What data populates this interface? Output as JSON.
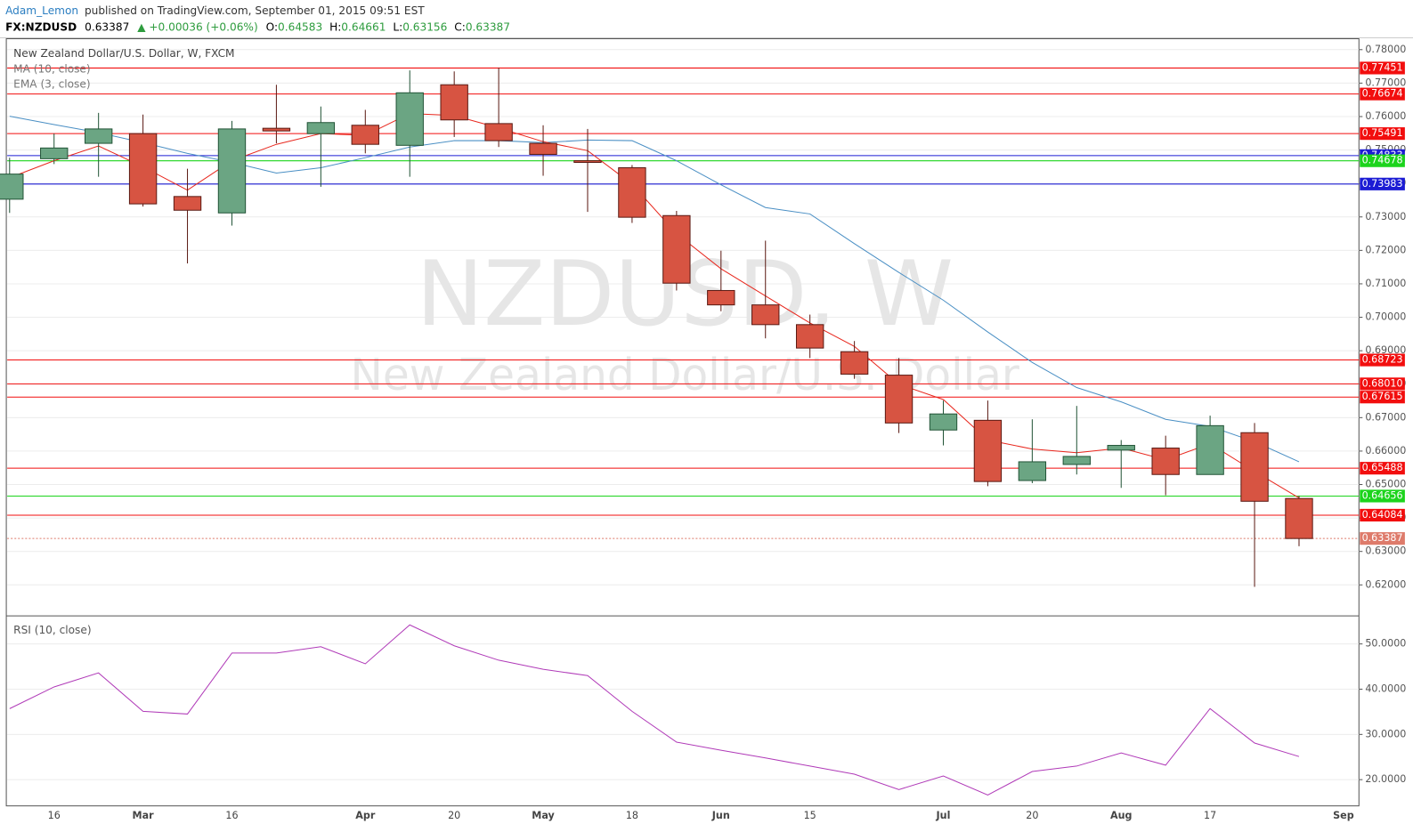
{
  "header": {
    "author": "Adam_Lemon",
    "published": "published on TradingView.com, September 01, 2015 09:51 EST",
    "symbol": "FX:NZDUSD",
    "price": "0.63387",
    "change": "▲ +0.00036 (+0.06%)",
    "ohlc": [
      {
        "key": "O:",
        "value": "0.64583"
      },
      {
        "key": "H:",
        "value": "0.64661"
      },
      {
        "key": "L:",
        "value": "0.63156"
      },
      {
        "key": "C:",
        "value": "0.63387"
      }
    ]
  },
  "chart_data": [
    {
      "type": "candlestick",
      "title": "New Zealand Dollar/U.S. Dollar, W, FXCM",
      "watermark": "NZDUSD, W",
      "watermark_subtitle": "New Zealand Dollar/U.S. Dollar",
      "categories": [
        null,
        "16",
        null,
        "Mar",
        null,
        "16",
        null,
        null,
        "Apr",
        null,
        "20",
        null,
        "May",
        null,
        "18",
        null,
        "Jun",
        null,
        "15",
        null,
        null,
        "Jul",
        null,
        "20",
        null,
        "Aug",
        null,
        "17",
        null,
        null,
        "Sep"
      ],
      "open": [
        0.7353,
        0.7474,
        0.752,
        0.7549,
        0.7361,
        0.7312,
        0.7565,
        0.7549,
        0.7574,
        0.7514,
        0.7695,
        0.7579,
        0.752,
        0.7468,
        0.7447,
        0.7304,
        0.708,
        0.7037,
        0.6978,
        0.6897,
        0.6827,
        0.6663,
        0.6692,
        0.6512,
        0.656,
        0.6603,
        0.6609,
        0.653,
        0.6655,
        0.64583,
        null
      ],
      "high": [
        0.7477,
        0.7549,
        0.7611,
        0.7606,
        0.7444,
        0.7587,
        0.7695,
        0.763,
        0.762,
        0.7738,
        0.7735,
        0.7746,
        0.7574,
        0.7563,
        0.7455,
        0.7318,
        0.7199,
        0.7229,
        0.7008,
        0.6929,
        0.6878,
        0.6751,
        0.6751,
        0.6695,
        0.6735,
        0.6633,
        0.6646,
        0.6706,
        0.6684,
        0.64661,
        null
      ],
      "low": [
        0.7312,
        0.7458,
        0.742,
        0.7331,
        0.7161,
        0.7274,
        0.752,
        0.739,
        0.749,
        0.742,
        0.7539,
        0.7509,
        0.7423,
        0.7315,
        0.7282,
        0.708,
        0.7018,
        0.6937,
        0.6878,
        0.6816,
        0.6654,
        0.6617,
        0.6495,
        0.6504,
        0.653,
        0.649,
        0.6468,
        0.653,
        0.6194,
        0.63156,
        null
      ],
      "close": [
        0.7428,
        0.7506,
        0.7563,
        0.7339,
        0.732,
        0.7563,
        0.7557,
        0.7582,
        0.7517,
        0.7671,
        0.759,
        0.7528,
        0.7487,
        0.7463,
        0.7299,
        0.7102,
        0.7037,
        0.6978,
        0.6908,
        0.683,
        0.6684,
        0.6711,
        0.6509,
        0.6568,
        0.6584,
        0.6617,
        0.653,
        0.6676,
        0.645,
        0.63387,
        null
      ],
      "up_color": "#6ba583",
      "down_color": "#d75442",
      "series": [
        {
          "name": "MA (10, close)",
          "color": "#4a8fc4",
          "values": [
            0.7601,
            0.7576,
            0.7552,
            0.7522,
            0.749,
            0.7463,
            0.7431,
            0.7447,
            0.7477,
            0.7509,
            0.7528,
            0.7528,
            0.7522,
            0.753,
            0.7528,
            0.7468,
            0.7396,
            0.7328,
            0.7309,
            0.722,
            0.7134,
            0.7051,
            0.6956,
            0.6865,
            0.679,
            0.6747,
            0.6695,
            0.6674,
            0.6628,
            0.6568,
            null
          ]
        },
        {
          "name": "EMA (3, close)",
          "color": "#e8281e",
          "values": [
            0.7417,
            0.7468,
            0.7512,
            0.745,
            0.738,
            0.7468,
            0.7517,
            0.7549,
            0.7544,
            0.7609,
            0.7603,
            0.7566,
            0.7525,
            0.7498,
            0.7398,
            0.725,
            0.7145,
            0.7064,
            0.6983,
            0.6913,
            0.68,
            0.6754,
            0.6633,
            0.6606,
            0.6595,
            0.6609,
            0.6574,
            0.6622,
            0.6539,
            0.646,
            null
          ]
        }
      ],
      "levels": [
        {
          "value": 0.77451,
          "label": "0.77451",
          "color": "#f20e0e"
        },
        {
          "value": 0.76674,
          "label": "0.76674",
          "color": "#f20e0e"
        },
        {
          "value": 0.75491,
          "label": "0.75491",
          "color": "#f20e0e"
        },
        {
          "value": 0.74833,
          "label": "0.74833",
          "color": "#1c1cd4"
        },
        {
          "value": 0.74678,
          "label": "0.74678",
          "color": "#1cd41c"
        },
        {
          "value": 0.73983,
          "label": "0.73983",
          "color": "#1c1cd4"
        },
        {
          "value": 0.68723,
          "label": "0.68723",
          "color": "#f20e0e"
        },
        {
          "value": 0.6801,
          "label": "0.68010",
          "color": "#f20e0e"
        },
        {
          "value": 0.67615,
          "label": "0.67615",
          "color": "#f20e0e"
        },
        {
          "value": 0.65488,
          "label": "0.65488",
          "color": "#f20e0e"
        },
        {
          "value": 0.64656,
          "label": "0.64656",
          "color": "#1cd41c"
        },
        {
          "value": 0.64084,
          "label": "0.64084",
          "color": "#f20e0e"
        },
        {
          "value": 0.63387,
          "label": "0.63387",
          "color": "#de7b6b",
          "dotted": true
        }
      ],
      "ylim": [
        0.611,
        0.783
      ],
      "yticks": [
        {
          "value": 0.62,
          "label": "0.62000"
        },
        {
          "value": 0.63,
          "label": "0.63000"
        },
        {
          "value": 0.64,
          "label": "0.64000"
        },
        {
          "value": 0.65,
          "label": "0.65000"
        },
        {
          "value": 0.66,
          "label": "0.66000"
        },
        {
          "value": 0.67,
          "label": "0.67000"
        },
        {
          "value": 0.68,
          "label": "0.68000"
        },
        {
          "value": 0.69,
          "label": "0.69000"
        },
        {
          "value": 0.7,
          "label": "0.70000"
        },
        {
          "value": 0.71,
          "label": "0.71000"
        },
        {
          "value": 0.72,
          "label": "0.72000"
        },
        {
          "value": 0.73,
          "label": "0.73000"
        },
        {
          "value": 0.74,
          "label": "0.74000"
        },
        {
          "value": 0.75,
          "label": "0.75000"
        },
        {
          "value": 0.76,
          "label": "0.76000"
        },
        {
          "value": 0.77,
          "label": "0.77000"
        },
        {
          "value": 0.78,
          "label": "0.78000"
        }
      ],
      "grid": true
    },
    {
      "type": "line",
      "title": "RSI (10, close)",
      "color": "#b03ab8",
      "values": [
        35.7,
        40.5,
        43.6,
        35.1,
        34.5,
        48.0,
        48.0,
        49.4,
        45.6,
        54.2,
        49.6,
        46.4,
        44.4,
        43.0,
        35.1,
        28.3,
        26.5,
        24.8,
        23.0,
        21.2,
        17.8,
        20.8,
        16.6,
        21.8,
        23.0,
        25.9,
        23.2,
        35.7,
        28.1,
        25.1,
        null
      ],
      "ylim": [
        14.2,
        56
      ],
      "yticks": [
        {
          "value": 20,
          "label": "20.0000"
        },
        {
          "value": 30,
          "label": "30.0000"
        },
        {
          "value": 40,
          "label": "40.0000"
        },
        {
          "value": 50,
          "label": "50.0000"
        }
      ],
      "grid": true
    }
  ]
}
